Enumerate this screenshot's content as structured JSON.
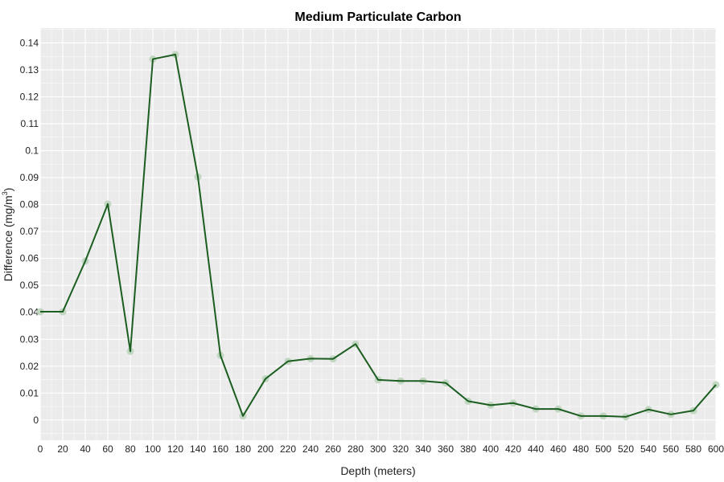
{
  "chart_data": {
    "type": "line",
    "title": "Medium Particulate Carbon",
    "xlabel": "Depth (meters)",
    "ylabel_main": "Difference (mg/m",
    "ylabel_sup": "3",
    "ylabel_tail": ")",
    "xlim": [
      0,
      600
    ],
    "ylim": [
      -0.0075,
      0.1455
    ],
    "x_ticks": [
      0,
      20,
      40,
      60,
      80,
      100,
      120,
      140,
      160,
      180,
      200,
      220,
      240,
      260,
      280,
      300,
      320,
      340,
      360,
      380,
      400,
      420,
      440,
      460,
      480,
      500,
      520,
      540,
      560,
      580,
      600
    ],
    "y_ticks": [
      0,
      0.01,
      0.02,
      0.03,
      0.04,
      0.05,
      0.06,
      0.07,
      0.08,
      0.09,
      0.1,
      0.11,
      0.12,
      0.13,
      0.14
    ],
    "grid": true,
    "colors": {
      "line": "#1b5e20",
      "marker": "#bcd4bc",
      "background": "#ebebeb",
      "grid": "#ffffff"
    },
    "series": [
      {
        "x": [
          0,
          20,
          40,
          60,
          80,
          100,
          120,
          140,
          160,
          180,
          200,
          220,
          240,
          260,
          280,
          300,
          320,
          340,
          360,
          380,
          400,
          420,
          440,
          460,
          480,
          500,
          520,
          540,
          560,
          580,
          600
        ],
        "y": [
          0.0402,
          0.0402,
          0.059,
          0.0802,
          0.0255,
          0.134,
          0.1357,
          0.0903,
          0.024,
          0.0015,
          0.0153,
          0.0218,
          0.0228,
          0.0227,
          0.0282,
          0.0149,
          0.0145,
          0.0145,
          0.0138,
          0.007,
          0.0055,
          0.0063,
          0.0041,
          0.0041,
          0.0015,
          0.0015,
          0.0012,
          0.0039,
          0.0021,
          0.0035,
          0.0131
        ]
      }
    ]
  }
}
